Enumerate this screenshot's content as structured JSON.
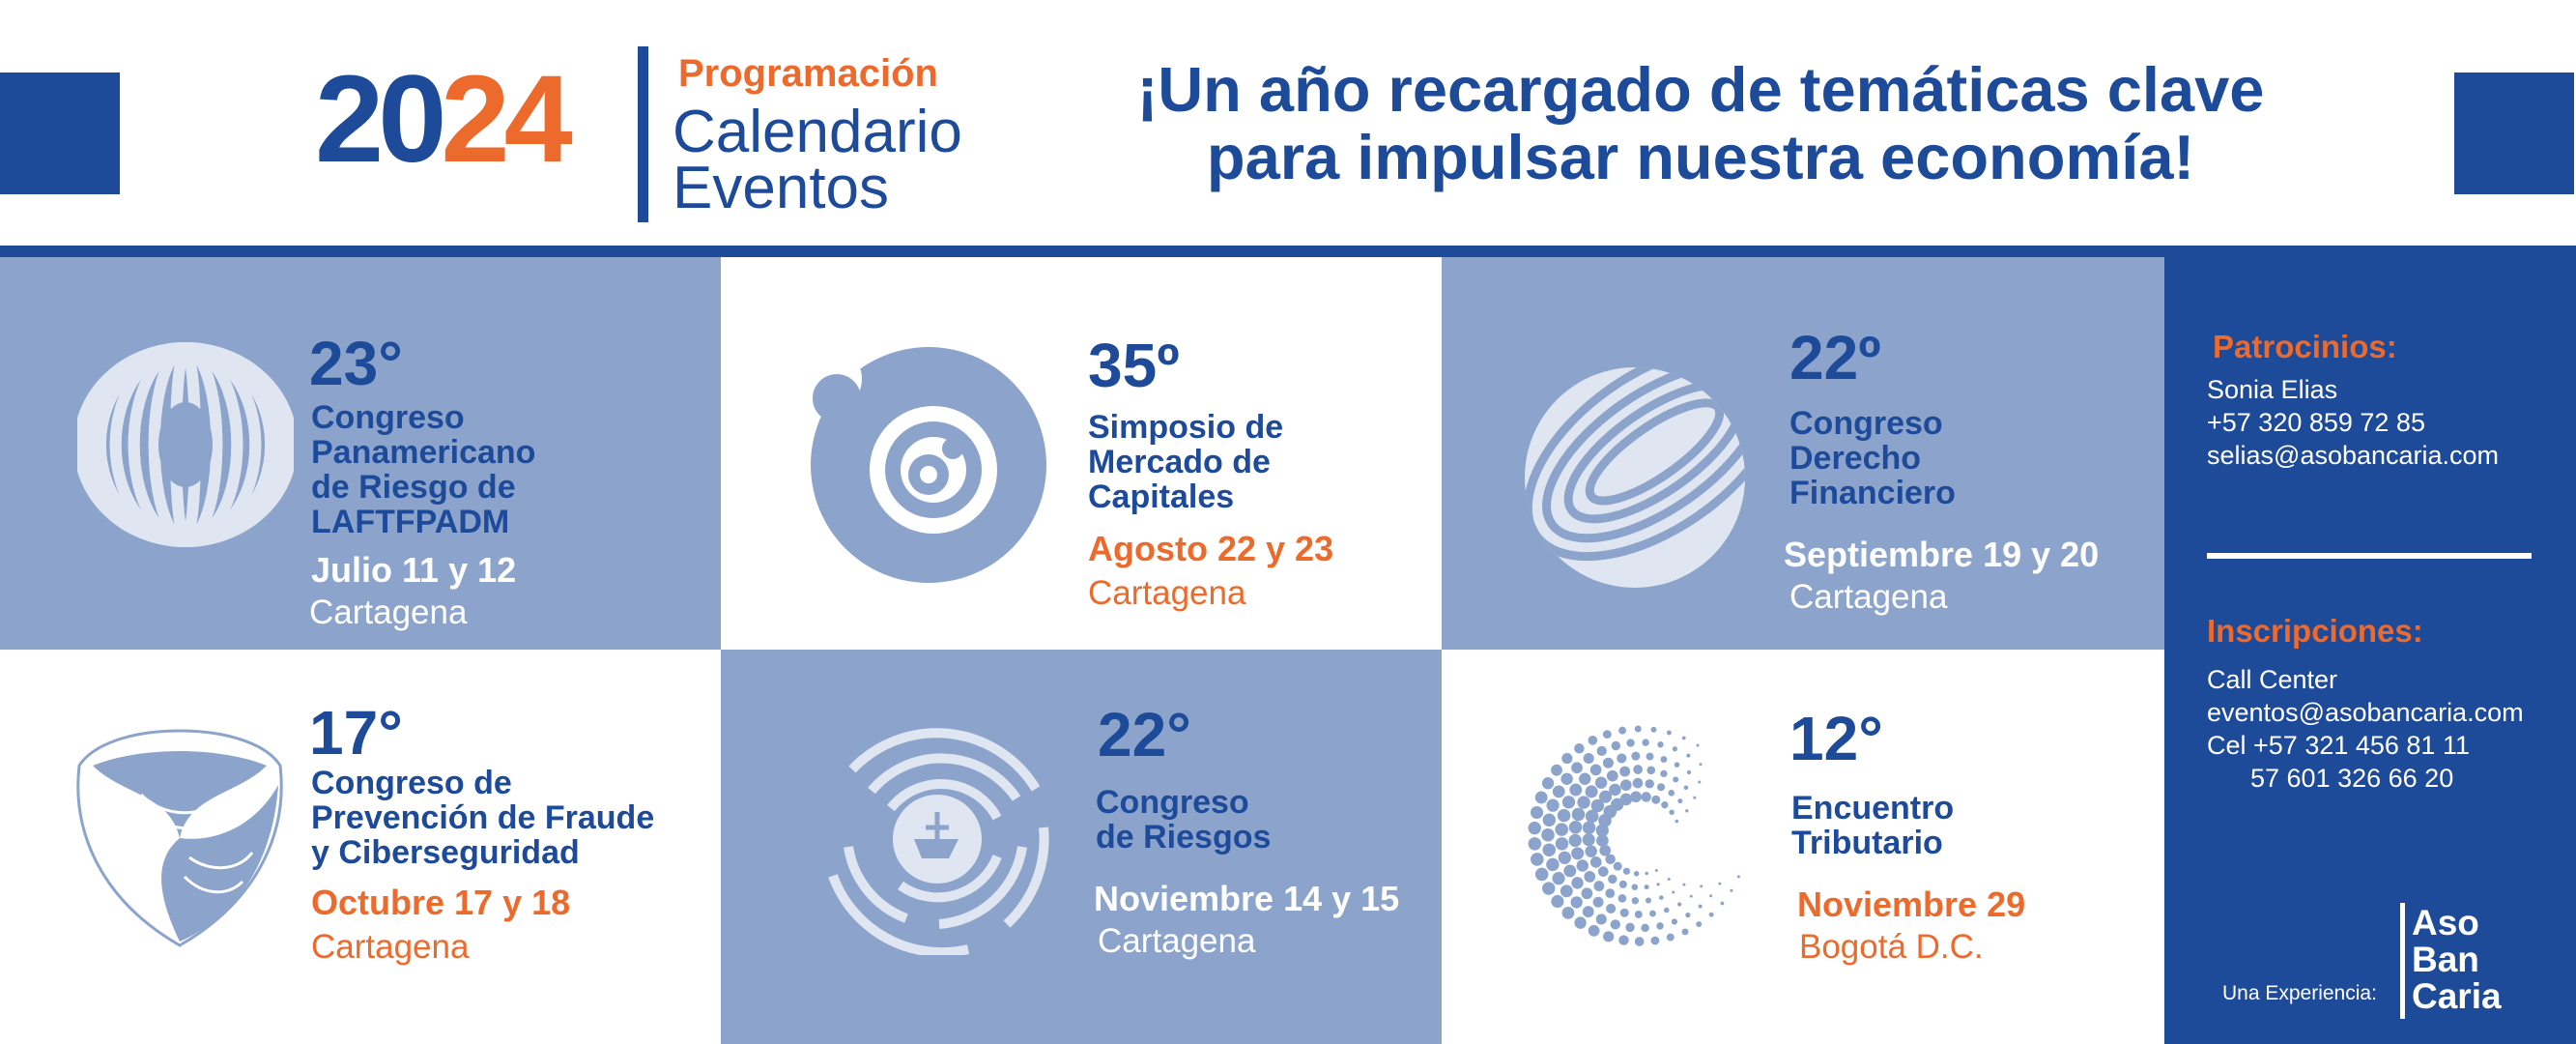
{
  "header": {
    "year_a": "20",
    "year_b": "24",
    "kicker": "Programación",
    "title": "Calendario\nEventos",
    "tagline": "¡Un año recargado de temáticas clave\npara impulsar nuestra economía!"
  },
  "events": [
    {
      "number": "23°",
      "title": "Congreso\nPanamericano\nde Riesgo de\nLAFTFPADM",
      "date": "Julio 11 y 12",
      "place": "Cartagena",
      "icon": "striped-torus-icon"
    },
    {
      "number": "35º",
      "title": "Simposio de\nMercado de\nCapitales",
      "date": "Agosto 22 y 23",
      "place": "Cartagena",
      "icon": "spiral-circles-icon"
    },
    {
      "number": "22º",
      "title": "Congreso\nDerecho\nFinanciero",
      "date": "Septiembre 19 y 20",
      "place": "Cartagena",
      "icon": "striped-sphere-icon"
    },
    {
      "number": "17°",
      "title": "Congreso de\nPrevención de Fraude\ny Ciberseguridad",
      "date": "Octubre 17 y 18",
      "place": "Cartagena",
      "icon": "fingerprint-shield-icon"
    },
    {
      "number": "22°",
      "title": "Congreso\nde Riesgos",
      "date": "Noviembre 14 y 15",
      "place": "Cartagena",
      "icon": "maze-circle-icon"
    },
    {
      "number": "12°",
      "title": "Encuentro\nTributario",
      "date": "Noviembre 29",
      "place": "Bogotá D.C.",
      "icon": "dotted-swirl-icon"
    }
  ],
  "contact": {
    "sponsor_heading": "Patrocinios:",
    "sponsor_lines": "Sonia Elias\n+57 320 859 72 85\nselias@asobancaria.com",
    "registration_heading": "Inscripciones:",
    "registration_lines": "Call Center\neventos@asobancaria.com\nCel +57 321 456 81 11\n      57 601 326 66 20",
    "experience": "Una Experiencia:",
    "logo_text": "Aso\nBan\nCaria"
  },
  "colors": {
    "blue": "#1e4a9a",
    "light_blue": "#8ca4cc",
    "orange": "#ec6a2c",
    "icon_light": "#dfe6f2"
  }
}
